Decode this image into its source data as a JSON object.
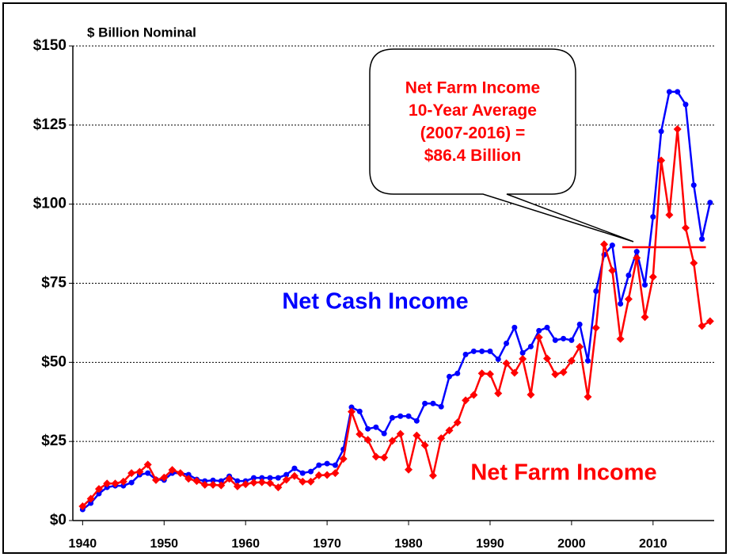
{
  "chart_data": {
    "type": "line",
    "title": "$ Billion Nominal",
    "x": [
      1940,
      1941,
      1942,
      1943,
      1944,
      1945,
      1946,
      1947,
      1948,
      1949,
      1950,
      1951,
      1952,
      1953,
      1954,
      1955,
      1956,
      1957,
      1958,
      1959,
      1960,
      1961,
      1962,
      1963,
      1964,
      1965,
      1966,
      1967,
      1968,
      1969,
      1970,
      1971,
      1972,
      1973,
      1974,
      1975,
      1976,
      1977,
      1978,
      1979,
      1980,
      1981,
      1982,
      1983,
      1984,
      1985,
      1986,
      1987,
      1988,
      1989,
      1990,
      1991,
      1992,
      1993,
      1994,
      1995,
      1996,
      1997,
      1998,
      1999,
      2000,
      2001,
      2002,
      2003,
      2004,
      2005,
      2006,
      2007,
      2008,
      2009,
      2010,
      2011,
      2012,
      2013,
      2014,
      2015,
      2016,
      2017
    ],
    "series": [
      {
        "name": "Net Cash Income",
        "color": "#0000ff",
        "marker": "circle",
        "values": [
          3.5,
          5.5,
          8.5,
          10.5,
          11,
          11,
          12,
          14.5,
          15,
          13,
          12.8,
          15,
          15,
          14.5,
          13,
          12.5,
          12.7,
          12.5,
          14,
          12.5,
          12.5,
          13.5,
          13.5,
          13.5,
          13.5,
          14.5,
          16.5,
          15,
          15.5,
          17.5,
          18,
          17.5,
          22.5,
          35.8,
          34.5,
          29,
          29.5,
          27.5,
          32.5,
          33,
          33,
          31.5,
          37,
          37,
          36,
          45.5,
          46.5,
          52.5,
          53.5,
          53.5,
          53.5,
          51,
          56,
          61,
          53,
          55,
          60,
          61,
          57,
          57.5,
          57,
          62,
          50.5,
          72.5,
          84,
          87,
          68.5,
          77.5,
          85,
          74.5,
          96,
          123,
          135.5,
          135.5,
          131.5,
          106,
          89,
          100.5
        ]
      },
      {
        "name": "Net Farm Income",
        "color": "#ff0000",
        "marker": "diamond",
        "values": [
          4.5,
          6.9,
          10,
          11.7,
          11.7,
          12.3,
          15,
          15.4,
          17.7,
          12.8,
          13.6,
          16,
          15,
          13.2,
          12.5,
          11.3,
          11.3,
          11.1,
          13.2,
          10.8,
          11.5,
          12,
          12.1,
          11.8,
          10.5,
          12.9,
          14.1,
          12.3,
          12.3,
          14.3,
          14.4,
          15,
          19.5,
          34.4,
          27.3,
          25.5,
          20.2,
          19.9,
          25.2,
          27.4,
          16.1,
          26.9,
          23.8,
          14.2,
          26,
          28.5,
          31,
          38,
          39.7,
          46.5,
          46.3,
          40.2,
          49.7,
          46.7,
          51.1,
          39.8,
          57.9,
          51.2,
          46.2,
          46.9,
          50.5,
          54.9,
          39.1,
          60.9,
          87.3,
          79,
          57.4,
          70,
          83,
          64.3,
          77,
          113.8,
          96.6,
          123.7,
          92.5,
          81.4,
          61.5,
          63
        ]
      }
    ],
    "annotation": {
      "lines": [
        "Net Farm Income",
        "10-Year Average",
        "(2007-2016) =",
        "$86.4 Billion"
      ],
      "value": 86.4,
      "x": [
        2007,
        2016
      ],
      "color": "#ff0000"
    },
    "xlim": [
      1938.8,
      2017.5
    ],
    "xticks": [
      1940,
      1950,
      1960,
      1970,
      1980,
      1990,
      2000,
      2010
    ],
    "ylim": [
      0,
      150
    ],
    "yticks": [
      {
        "value": 0,
        "label": "$0"
      },
      {
        "value": 25,
        "label": "$25"
      },
      {
        "value": 50,
        "label": "$50"
      },
      {
        "value": 75,
        "label": "$75"
      },
      {
        "value": 100,
        "label": "$100"
      },
      {
        "value": 125,
        "label": "$125"
      },
      {
        "value": 150,
        "label": "$150"
      }
    ],
    "grid": true
  }
}
